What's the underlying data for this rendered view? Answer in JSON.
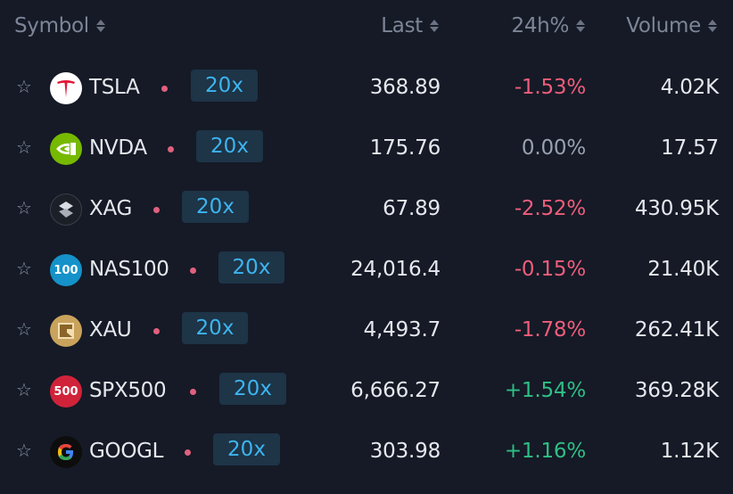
{
  "header": {
    "symbol": "Symbol",
    "last": "Last",
    "change": "24h%",
    "volume": "Volume"
  },
  "rows": [
    {
      "symbol": "TSLA",
      "leverage": "20x",
      "last": "368.89",
      "change": "-1.53%",
      "direction": "neg",
      "volume": "4.02K",
      "logo": "tesla-logo-icon",
      "logo_color": "#ffffff"
    },
    {
      "symbol": "NVDA",
      "leverage": "20x",
      "last": "175.76",
      "change": "0.00%",
      "direction": "zero",
      "volume": "17.57",
      "logo": "nvidia-logo-icon",
      "logo_color": "#76b900"
    },
    {
      "symbol": "XAG",
      "leverage": "20x",
      "last": "67.89",
      "change": "-2.52%",
      "direction": "neg",
      "volume": "430.95K",
      "logo": "silver-logo-icon",
      "logo_color": "#1b1f27"
    },
    {
      "symbol": "NAS100",
      "leverage": "20x",
      "last": "24,016.4",
      "change": "-0.15%",
      "direction": "neg",
      "volume": "21.40K",
      "logo": "nas100-logo-icon",
      "logo_color": "#1592c9",
      "logo_text": "100"
    },
    {
      "symbol": "XAU",
      "leverage": "20x",
      "last": "4,493.7",
      "change": "-1.78%",
      "direction": "neg",
      "volume": "262.41K",
      "logo": "gold-logo-icon",
      "logo_color": "#c9a25c"
    },
    {
      "symbol": "SPX500",
      "leverage": "20x",
      "last": "6,666.27",
      "change": "+1.54%",
      "direction": "pos",
      "volume": "369.28K",
      "logo": "spx500-logo-icon",
      "logo_color": "#d0233a",
      "logo_text": "500"
    },
    {
      "symbol": "GOOGL",
      "leverage": "20x",
      "last": "303.98",
      "change": "+1.16%",
      "direction": "pos",
      "volume": "1.12K",
      "logo": "google-logo-icon",
      "logo_color": "#0d0d0d"
    }
  ],
  "colors": {
    "background": "#151a26",
    "negative": "#ef5d7c",
    "positive": "#2fbf85",
    "neutral": "#9aa1b1",
    "leverage_bg": "#1e3447",
    "leverage_text": "#3db4ef"
  }
}
